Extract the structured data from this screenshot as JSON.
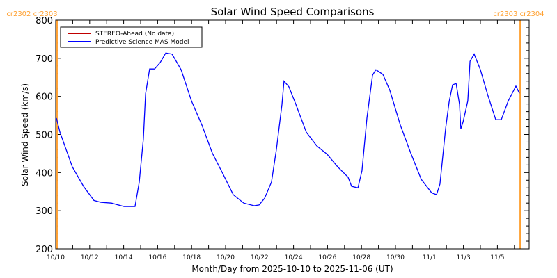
{
  "chart_data": {
    "type": "line",
    "title": "Solar Wind Speed Comparisons",
    "xlabel": "Month/Day from 2025-10-10 to 2025-11-06 (UT)",
    "ylabel": "Solar Wind Speed (km/s)",
    "ylim": [
      200,
      800
    ],
    "xlim_days": [
      0,
      27.9
    ],
    "yticks": [
      "200",
      "300",
      "400",
      "500",
      "600",
      "700",
      "800"
    ],
    "ytick_values": [
      200,
      300,
      400,
      500,
      600,
      700,
      800
    ],
    "xticks": [
      "10/10",
      "10/12",
      "10/14",
      "10/16",
      "10/18",
      "10/20",
      "10/22",
      "10/24",
      "10/26",
      "10/28",
      "10/30",
      "11/1",
      "11/3",
      "11/5"
    ],
    "xtick_days": [
      0,
      2,
      4,
      6,
      8,
      10,
      12,
      14,
      16,
      18,
      20,
      22,
      24,
      26
    ],
    "grid": false,
    "legend_position": "top-left",
    "legend": [
      {
        "label": "STEREO-Ahead (No data)",
        "color": "#c00000"
      },
      {
        "label": "Predictive Science MAS Model",
        "color": "#0000ff"
      }
    ],
    "carrington_markers": [
      {
        "label": "cr2302 cr2303",
        "day": 0.08,
        "color": "#ffa030",
        "side": "left"
      },
      {
        "label": "cr2303 cr2304",
        "day": 27.34,
        "color": "#ffa030",
        "side": "right"
      }
    ],
    "series": [
      {
        "name": "Predictive Science MAS Model",
        "color": "#0000ff",
        "x_days": [
          0.04,
          0.25,
          0.98,
          1.64,
          2.25,
          2.66,
          3.28,
          4.02,
          4.67,
          4.92,
          5.16,
          5.29,
          5.53,
          5.82,
          6.15,
          6.48,
          6.85,
          7.38,
          7.99,
          8.61,
          9.22,
          9.84,
          10.45,
          11.07,
          11.68,
          11.97,
          12.3,
          12.7,
          12.99,
          13.32,
          13.44,
          13.73,
          14.14,
          14.75,
          15.37,
          15.98,
          16.6,
          17.21,
          17.42,
          17.79,
          18.03,
          18.32,
          18.65,
          18.85,
          19.26,
          19.67,
          20.29,
          20.9,
          21.52,
          22.13,
          22.42,
          22.62,
          22.95,
          23.16,
          23.36,
          23.57,
          23.77,
          23.85,
          23.98,
          24.26,
          24.39,
          24.63,
          25.0,
          25.41,
          25.9,
          26.23,
          26.64,
          27.09,
          27.3
        ],
        "values": [
          543,
          506,
          415,
          364,
          327,
          322,
          320,
          311,
          311,
          375,
          488,
          607,
          672,
          672,
          689,
          714,
          711,
          670,
          588,
          524,
          451,
          397,
          342,
          320,
          313,
          315,
          333,
          375,
          461,
          579,
          640,
          625,
          579,
          506,
          470,
          448,
          415,
          388,
          364,
          360,
          405,
          543,
          656,
          670,
          658,
          616,
          524,
          451,
          382,
          347,
          342,
          370,
          515,
          586,
          630,
          634,
          579,
          515,
          533,
          588,
          692,
          711,
          670,
          607,
          539,
          539,
          588,
          627,
          608
        ]
      },
      {
        "name": "STEREO-Ahead (No data)",
        "color": "#c00000",
        "x_days": [],
        "values": []
      }
    ]
  }
}
